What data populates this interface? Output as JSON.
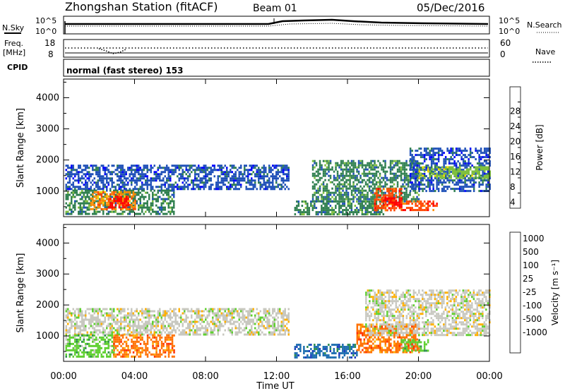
{
  "header": {
    "station": "Zhongshan Station (fitACF)",
    "beam": "Beam 01",
    "date": "05/Dec/2016"
  },
  "top_panels": {
    "nsky_label": "N.Sky",
    "nsky_ticks": [
      "10^5",
      "10^0"
    ],
    "nsearch_label": "N.Search",
    "nsearch_ticks": [
      "10^5",
      "10^0"
    ],
    "freq_label_1": "Freq.",
    "freq_label_2": "[MHz]",
    "freq_ticks": [
      "18",
      "8"
    ],
    "nave_label": "Nave",
    "nave_ticks": [
      "60",
      "0"
    ],
    "cpid_label": "CPID",
    "cpid_text": "normal (fast stereo) 153"
  },
  "time_axis": {
    "ticks": [
      "00:00",
      "04:00",
      "08:00",
      "12:00",
      "16:00",
      "20:00",
      "00:00"
    ],
    "label": "Time UT"
  },
  "chart_data": [
    {
      "type": "heatmap",
      "name": "power",
      "ylabel": "Slant Range [km]",
      "y_ticks": [
        1000,
        2000,
        3000,
        4000
      ],
      "ylim": [
        180,
        4600
      ],
      "xlim_hours": [
        0,
        24
      ],
      "colorbar": {
        "label": "Power [dB]",
        "ticks": [
          "4",
          "8",
          "12",
          "16",
          "20",
          "24",
          "28"
        ],
        "colors": [
          "#0000ff",
          "#1f50b8",
          "#2f7f4f",
          "#7fbf3f",
          "#ffd700",
          "#ff8c00",
          "#ff4500",
          "#ff0000"
        ]
      },
      "regions": [
        {
          "t0": 0.1,
          "t1": 12.7,
          "r0": 1050,
          "r1": 1850,
          "level": 1
        },
        {
          "t0": 0.1,
          "t1": 6.2,
          "r0": 250,
          "r1": 1050,
          "level": 2
        },
        {
          "t0": 1.5,
          "t1": 4.0,
          "r0": 400,
          "r1": 1000,
          "level": 5
        },
        {
          "t0": 2.5,
          "t1": 3.6,
          "r0": 450,
          "r1": 850,
          "level": 7
        },
        {
          "t0": 13.0,
          "t1": 18.0,
          "r0": 250,
          "r1": 700,
          "level": 2
        },
        {
          "t0": 14.0,
          "t1": 20.0,
          "r0": 700,
          "r1": 2000,
          "level": 2
        },
        {
          "t0": 17.5,
          "t1": 19.0,
          "r0": 400,
          "r1": 1100,
          "level": 6
        },
        {
          "t0": 18.0,
          "t1": 19.0,
          "r0": 500,
          "r1": 800,
          "level": 7
        },
        {
          "t0": 19.0,
          "t1": 21.0,
          "r0": 400,
          "r1": 700,
          "level": 6
        },
        {
          "t0": 19.5,
          "t1": 24.0,
          "r0": 1000,
          "r1": 2400,
          "level": 1
        },
        {
          "t0": 20.0,
          "t1": 24.0,
          "r0": 1450,
          "r1": 1800,
          "level": 3
        }
      ]
    },
    {
      "type": "heatmap",
      "name": "velocity",
      "ylabel": "Slant Range [km]",
      "y_ticks": [
        1000,
        2000,
        3000,
        4000
      ],
      "ylim": [
        180,
        4600
      ],
      "xlim_hours": [
        0,
        24
      ],
      "colorbar": {
        "label": "Velocity [m s⁻¹]",
        "ticks": [
          "1000",
          "500",
          "100",
          "25",
          "-25",
          "-100",
          "-500",
          "-1000"
        ],
        "colors": [
          "#1e3fbf",
          "#1f6fb0",
          "#2f8f4f",
          "#5fd030",
          "#c8c8c0",
          "#ffb000",
          "#ff7000",
          "#ff3000",
          "#ff0000"
        ]
      },
      "regions": [
        {
          "t0": 0.1,
          "t1": 12.7,
          "r0": 1050,
          "r1": 1900,
          "level": 4
        },
        {
          "t0": 0.1,
          "t1": 2.8,
          "r0": 300,
          "r1": 1050,
          "level": 3
        },
        {
          "t0": 2.8,
          "t1": 6.2,
          "r0": 300,
          "r1": 1050,
          "level": 6
        },
        {
          "t0": 13.0,
          "t1": 16.5,
          "r0": 300,
          "r1": 750,
          "level": 1
        },
        {
          "t0": 16.5,
          "t1": 20.0,
          "r0": 450,
          "r1": 1400,
          "level": 6
        },
        {
          "t0": 19.0,
          "t1": 20.5,
          "r0": 500,
          "r1": 900,
          "level": 3
        },
        {
          "t0": 17.0,
          "t1": 24.0,
          "r0": 1000,
          "r1": 2500,
          "level": 4
        }
      ]
    }
  ]
}
